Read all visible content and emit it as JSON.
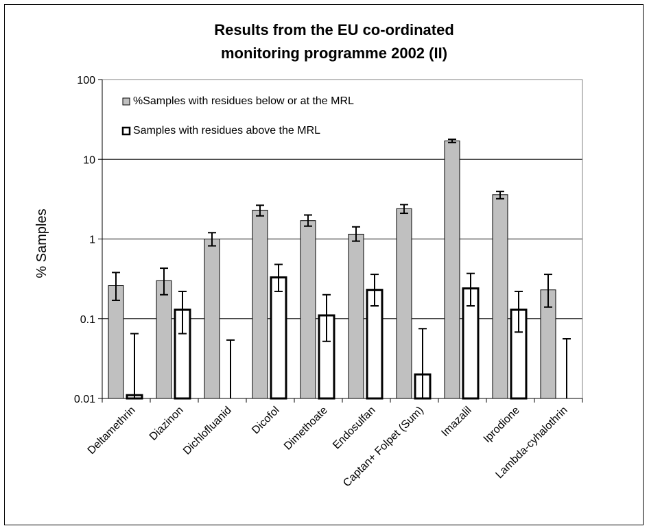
{
  "chart_data": {
    "type": "bar",
    "title_lines": [
      "Results from the EU co-ordinated",
      "monitoring programme 2002 (II)"
    ],
    "ylabel": "% Samples",
    "xlabel": "",
    "yscale": "log",
    "ylim": [
      0.01,
      100
    ],
    "yticks": [
      0.01,
      0.1,
      1,
      10,
      100
    ],
    "ytick_labels": [
      "0.01",
      "0.1",
      "1",
      "10",
      "100"
    ],
    "grid": "horizontal major gridlines",
    "legend_placement": "top-left inside plot",
    "categories": [
      "Deltamethrin",
      "Diazinon",
      "Dichlofluanid",
      "Dicofol",
      "Dimethoate",
      "Endosulfan",
      "Captan+ Folpet (Sum)",
      "Imazalil",
      "Iprodione",
      "Lambda-cyhalothrin"
    ],
    "series": [
      {
        "name": "%Samples with residues below or at the MRL",
        "fill": "#c0c0c0",
        "values": [
          0.26,
          0.3,
          1.0,
          2.3,
          1.7,
          1.15,
          2.4,
          17,
          3.6,
          0.23
        ],
        "err_low": [
          0.17,
          0.2,
          0.82,
          1.95,
          1.45,
          0.94,
          2.1,
          16.2,
          3.2,
          0.14
        ],
        "err_high": [
          0.38,
          0.43,
          1.2,
          2.65,
          2.0,
          1.42,
          2.7,
          17.8,
          3.95,
          0.36
        ]
      },
      {
        "name": "Samples with residues above the MRL",
        "fill": "#ffffff",
        "values": [
          0.011,
          0.13,
          0.01,
          0.33,
          0.11,
          0.23,
          0.02,
          0.24,
          0.13,
          0.01
        ],
        "err_low": [
          0.01,
          0.065,
          null,
          0.22,
          0.052,
          0.145,
          null,
          0.145,
          0.068,
          null
        ],
        "err_high": [
          0.065,
          0.22,
          0.054,
          0.48,
          0.2,
          0.36,
          0.075,
          0.37,
          0.22,
          0.056
        ]
      }
    ]
  }
}
